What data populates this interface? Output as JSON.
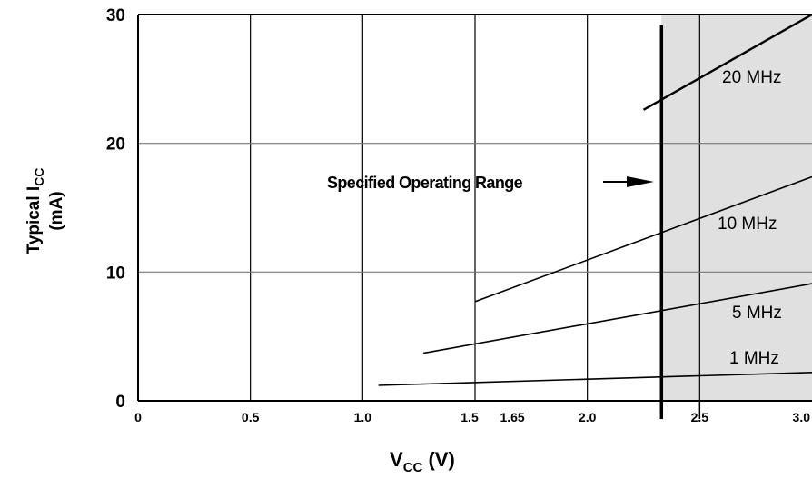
{
  "chart_data": {
    "type": "line",
    "x_axis": {
      "label_main": "V",
      "label_sub": "CC",
      "label_unit": " (V)",
      "range": [
        0,
        3.0
      ],
      "ticks": [
        {
          "value": 0,
          "label": "0"
        },
        {
          "value": 0.5,
          "label": "0.5"
        },
        {
          "value": 1.0,
          "label": "1.0"
        },
        {
          "value": 1.5,
          "label": "1.5"
        },
        {
          "value": 1.65,
          "label": "1.65"
        },
        {
          "value": 2.0,
          "label": "2.0"
        },
        {
          "value": 2.5,
          "label": "2.5"
        },
        {
          "value": 3.0,
          "label": "3.0"
        }
      ],
      "gridlines": [
        0.5,
        1.0,
        1.5,
        2.0,
        2.5
      ]
    },
    "y_axis": {
      "label_main": "Typical I",
      "label_sub": "CC",
      "label_unit": "(mA)",
      "range": [
        0,
        30
      ],
      "ticks": [
        {
          "value": 0,
          "label": "0"
        },
        {
          "value": 10,
          "label": "10"
        },
        {
          "value": 20,
          "label": "20"
        },
        {
          "value": 30,
          "label": "30"
        }
      ],
      "gridlines": [
        10,
        20
      ]
    },
    "series": [
      {
        "name": "20 MHz",
        "x": [
          2.25,
          3.0
        ],
        "y": [
          22.6,
          30.0
        ]
      },
      {
        "name": "10 MHz",
        "x": [
          1.5,
          3.0
        ],
        "y": [
          7.7,
          17.4
        ]
      },
      {
        "name": "5 MHz",
        "x": [
          1.27,
          3.0
        ],
        "y": [
          3.7,
          9.1
        ]
      },
      {
        "name": "1 MHz",
        "x": [
          1.07,
          3.0
        ],
        "y": [
          1.2,
          2.2
        ]
      }
    ],
    "operating_range": {
      "start": 2.33,
      "end": 3.0,
      "shade_color": "#e0e0e0"
    },
    "annotation": {
      "text": "Specified Operating Range"
    },
    "colors": {
      "line": "#000000",
      "grid": "#000000",
      "shade": "#e0e0e0"
    }
  }
}
